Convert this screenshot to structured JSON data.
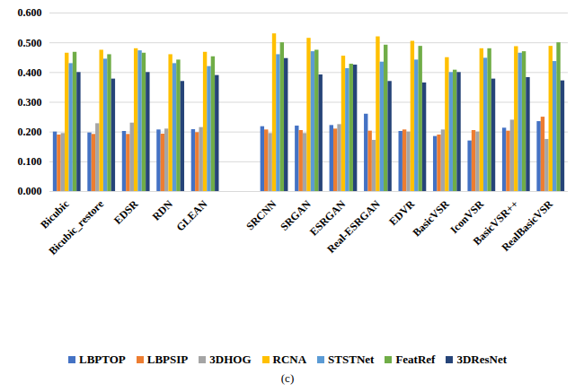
{
  "chart_data": {
    "type": "bar",
    "caption": "(c)",
    "categories": [
      "Bicubic",
      "Bicubic_restore",
      "EDSR",
      "RDN",
      "GLEAN",
      null,
      "SRCNN",
      "SRGAN",
      "ESRGAN",
      "Real-ESRGAN",
      "EDVR",
      "BasicVSR",
      "IconVSR",
      "BasicVSR++",
      "RealBasicVSR"
    ],
    "series": [
      {
        "name": "LBPTOP",
        "color": "#4472c4",
        "values": [
          0.2,
          0.197,
          0.202,
          0.207,
          0.208,
          null,
          0.218,
          0.22,
          0.222,
          0.26,
          0.202,
          0.185,
          0.17,
          0.213,
          0.235
        ]
      },
      {
        "name": "LBPSIP",
        "color": "#ed7d31",
        "values": [
          0.19,
          0.192,
          0.192,
          0.193,
          0.198,
          null,
          0.207,
          0.205,
          0.21,
          0.203,
          0.207,
          0.19,
          0.205,
          0.203,
          0.25
        ]
      },
      {
        "name": "3DHOG",
        "color": "#a5a5a5",
        "values": [
          0.195,
          0.228,
          0.23,
          0.21,
          0.215,
          null,
          0.195,
          0.195,
          0.225,
          0.172,
          0.2,
          0.207,
          0.2,
          0.24,
          0.175
        ]
      },
      {
        "name": "RCNA",
        "color": "#ffc000",
        "values": [
          0.465,
          0.475,
          0.48,
          0.46,
          0.468,
          null,
          0.53,
          0.515,
          0.455,
          0.52,
          0.505,
          0.45,
          0.48,
          0.487,
          0.488
        ]
      },
      {
        "name": "STSTNet",
        "color": "#5b9bd5",
        "values": [
          0.43,
          0.445,
          0.473,
          0.43,
          0.42,
          null,
          0.46,
          0.47,
          0.413,
          0.435,
          0.442,
          0.4,
          0.448,
          0.465,
          0.437
        ]
      },
      {
        "name": "FeatRef",
        "color": "#70ad47",
        "values": [
          0.468,
          0.46,
          0.465,
          0.442,
          0.453,
          null,
          0.5,
          0.475,
          0.428,
          0.492,
          0.488,
          0.408,
          0.48,
          0.47,
          0.5
        ]
      },
      {
        "name": "3DResNet",
        "color": "#264478",
        "values": [
          0.4,
          0.378,
          0.4,
          0.37,
          0.39,
          null,
          0.447,
          0.392,
          0.425,
          0.37,
          0.365,
          0.4,
          0.378,
          0.383,
          0.372
        ]
      }
    ],
    "ylim": [
      0,
      0.6
    ],
    "yticks": [
      {
        "value": 0,
        "label": "0.000"
      },
      {
        "value": 0.1,
        "label": "0.100"
      },
      {
        "value": 0.2,
        "label": "0.200"
      },
      {
        "value": 0.3,
        "label": "0.300"
      },
      {
        "value": 0.4,
        "label": "0.400"
      },
      {
        "value": 0.5,
        "label": "0.500"
      },
      {
        "value": 0.6,
        "label": "0.600"
      }
    ],
    "grid": true,
    "legend": "bottom"
  }
}
